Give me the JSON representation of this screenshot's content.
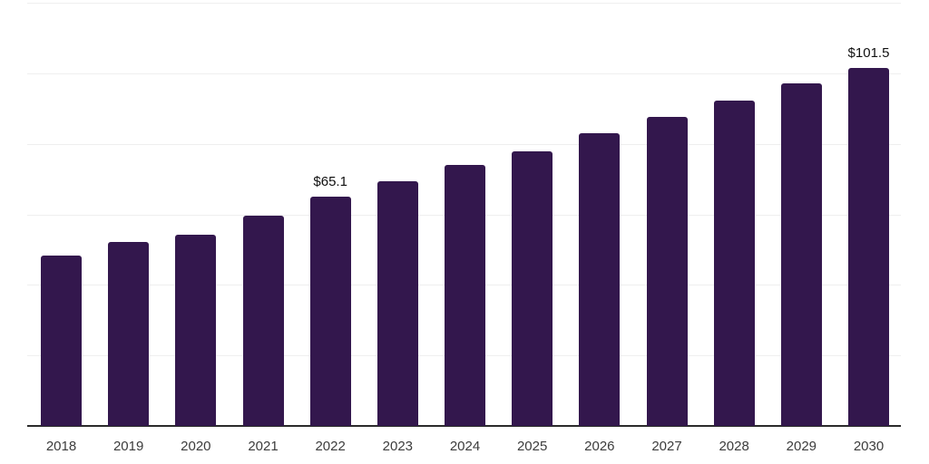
{
  "chart_data": {
    "type": "bar",
    "title": "",
    "xlabel": "",
    "ylabel": "",
    "categories": [
      "2018",
      "2019",
      "2020",
      "2021",
      "2022",
      "2023",
      "2024",
      "2025",
      "2026",
      "2027",
      "2028",
      "2029",
      "2030"
    ],
    "values": [
      48.2,
      52.2,
      54.2,
      59.5,
      65.1,
      69.4,
      73.9,
      77.9,
      83.1,
      87.6,
      92.3,
      97.1,
      101.5
    ],
    "point_labels": [
      "",
      "",
      "",
      "",
      "$65.1",
      "",
      "",
      "",
      "",
      "",
      "",
      "",
      "$101.5"
    ],
    "ylim": [
      0,
      120
    ],
    "grid_step": 20,
    "grid": "horizontal-only",
    "legend_position": "none",
    "y_axis_labels_visible": false,
    "colors": {
      "bar": "#33174d",
      "axis_line": "#2b2b2b",
      "gridline": "#efefef",
      "tick_label": "#3c3c3c",
      "data_label": "#111111",
      "background": "#ffffff"
    }
  }
}
